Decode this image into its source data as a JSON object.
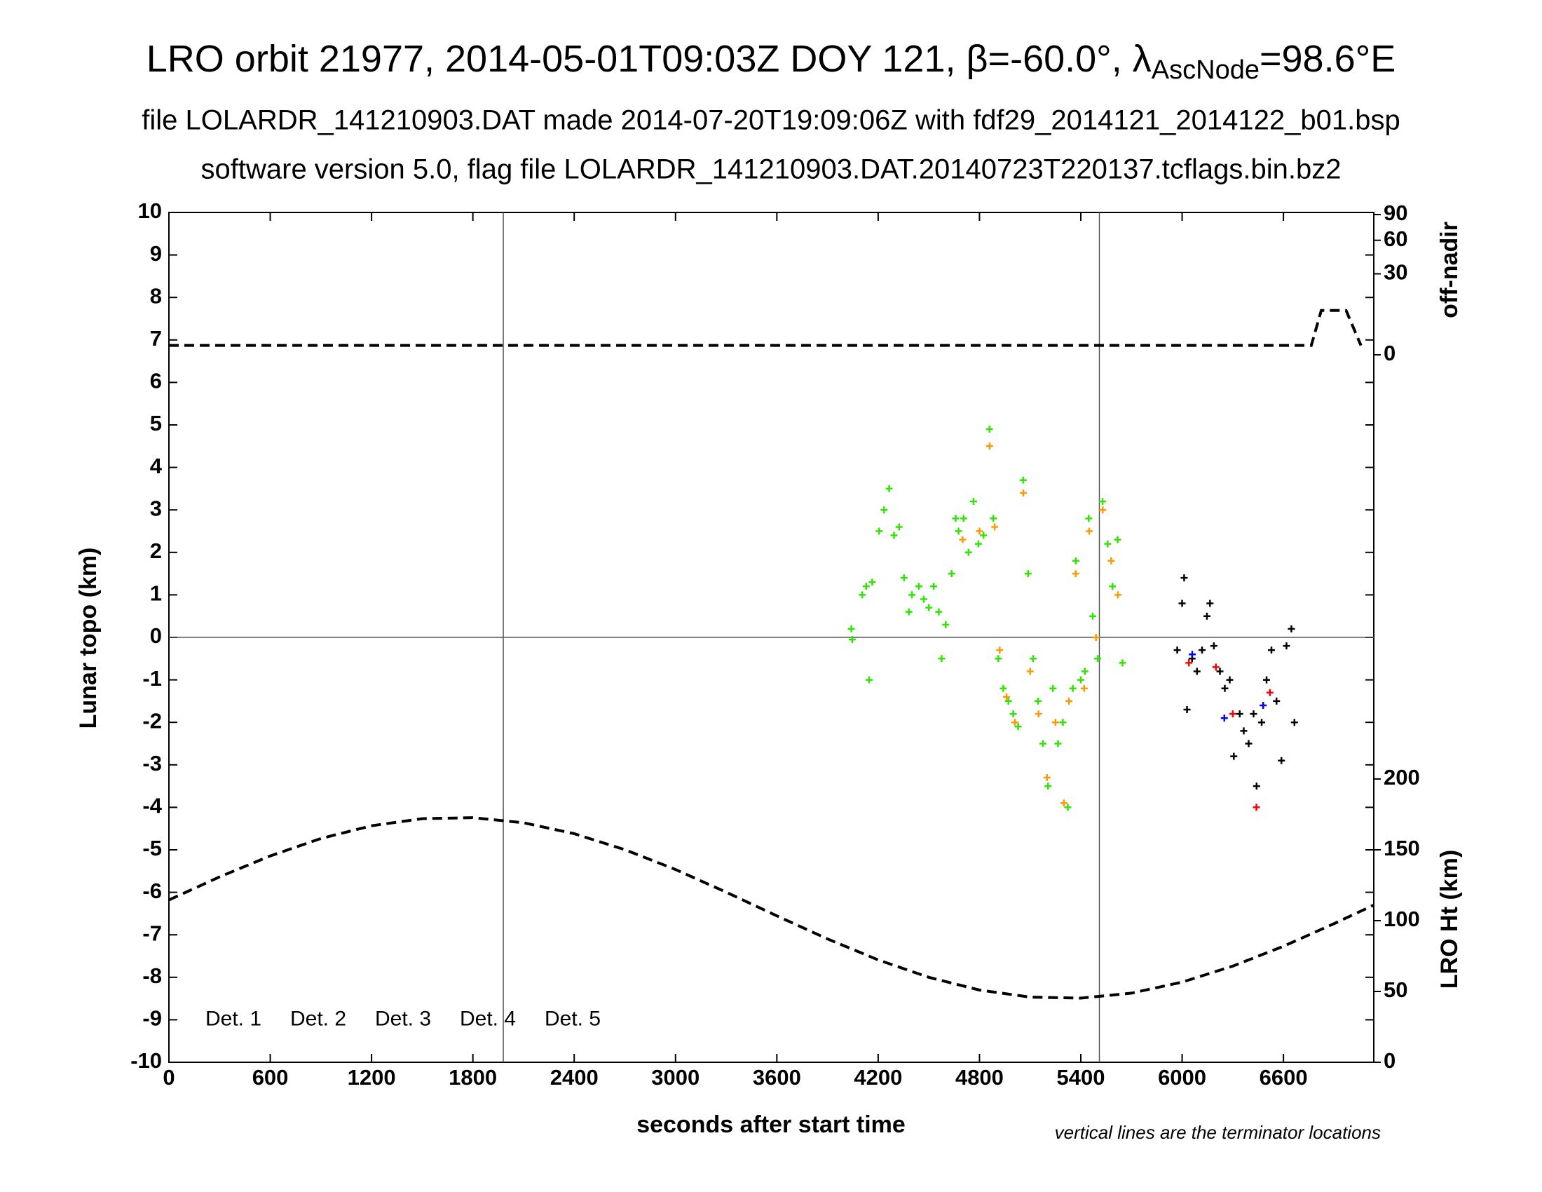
{
  "chart_data": {
    "type": "scatter",
    "title": {
      "main": "LRO orbit 21977, 2014-05-01T09:03Z DOY 121, β=-60.0°, λ",
      "subscript": "AscNode",
      "end": "=98.6°E"
    },
    "subtitles": [
      "file LOLARDR_141210903.DAT made 2014-07-20T19:09:06Z with fdf29_2014121_2014122_b01.bsp",
      "software version 5.0, flag file LOLARDR_141210903.DAT.20140723T220137.tcflags.bin.bz2"
    ],
    "xlabel": "seconds after start time",
    "ylabel": "Lunar topo (km)",
    "y2label": "off-nadir",
    "y3label": "LRO Ht (km)",
    "note": "vertical lines are the terminator locations",
    "xlim": [
      0,
      7135
    ],
    "xticks": [
      0,
      600,
      1200,
      1800,
      2400,
      3000,
      3600,
      4200,
      4800,
      5400,
      6000,
      6600
    ],
    "ylim": [
      -10,
      10
    ],
    "yticks": [
      -10,
      -9,
      -8,
      -7,
      -6,
      -5,
      -4,
      -3,
      -2,
      -1,
      0,
      1,
      2,
      3,
      4,
      5,
      6,
      7,
      8,
      9,
      10
    ],
    "y2lim": [
      0,
      90
    ],
    "y2ticks": [
      0,
      30,
      60,
      90
    ],
    "y2scale": "sqrt",
    "y3lim": [
      0,
      200
    ],
    "y3ticks": [
      0,
      50,
      100,
      150,
      200
    ],
    "vlines": [
      1980,
      5510
    ],
    "hlines": [
      0
    ],
    "legend": "lower left",
    "series": [
      {
        "name": "Det. 1",
        "color": "#000000",
        "x": [
          5971,
          6000,
          6012,
          6029,
          6059,
          6088,
          6118,
          6147,
          6165,
          6188,
          6224,
          6253,
          6282,
          6306,
          6341,
          6365,
          6394,
          6423,
          6441,
          6471,
          6500,
          6529,
          6559,
          6588,
          6618,
          6647,
          6665
        ],
        "values": [
          -0.3,
          0.8,
          1.4,
          -1.7,
          -0.5,
          -0.8,
          -0.3,
          0.5,
          0.8,
          -0.2,
          -0.8,
          -1.2,
          -1.0,
          -2.8,
          -1.8,
          -2.2,
          -2.5,
          -1.8,
          -3.5,
          -2.0,
          -1.0,
          -0.3,
          -1.5,
          -2.9,
          -0.2,
          0.2,
          -2.0
        ]
      },
      {
        "name": "Det. 2",
        "color": "#0000ff",
        "x": [
          6060,
          6250,
          6480
        ],
        "values": [
          -0.4,
          -1.9,
          -1.6
        ]
      },
      {
        "name": "Det. 3",
        "color": "#2ee600",
        "x": [
          4041,
          4047,
          4147,
          4106,
          4129,
          4165,
          4206,
          4235,
          4265,
          4294,
          4324,
          4353,
          4382,
          4400,
          4441,
          4470,
          4500,
          4529,
          4559,
          4576,
          4600,
          4635,
          4659,
          4676,
          4706,
          4735,
          4765,
          4794,
          4824,
          4859,
          4882,
          4912,
          4941,
          4971,
          5000,
          5029,
          5059,
          5088,
          5118,
          5147,
          5176,
          5206,
          5235,
          5265,
          5294,
          5323,
          5353,
          5371,
          5400,
          5424,
          5447,
          5471,
          5500,
          5529,
          5559,
          5588,
          5618,
          5647
        ],
        "values": [
          0.2,
          -0.05,
          -1.0,
          1.0,
          1.2,
          1.3,
          2.5,
          3.0,
          3.5,
          2.4,
          2.6,
          1.4,
          0.6,
          1.0,
          1.2,
          0.9,
          0.7,
          1.2,
          0.6,
          -0.5,
          0.3,
          1.5,
          2.8,
          2.5,
          2.8,
          2.0,
          3.2,
          2.2,
          2.4,
          4.9,
          2.8,
          -0.5,
          -1.2,
          -1.5,
          -1.8,
          -2.1,
          3.7,
          1.5,
          -0.5,
          -1.5,
          -2.5,
          -3.5,
          -1.2,
          -2.5,
          -2.0,
          -4.0,
          -1.2,
          1.8,
          -1.0,
          -0.8,
          2.8,
          0.5,
          -0.5,
          3.2,
          2.2,
          1.2,
          2.3,
          -0.6
        ]
      },
      {
        "name": "Det. 4",
        "color": "#ff9900",
        "x": [
          4700,
          4800,
          4860,
          4890,
          4920,
          4960,
          5010,
          5060,
          5100,
          5150,
          5200,
          5250,
          5300,
          5330,
          5370,
          5420,
          5450,
          5490,
          5530,
          5580,
          5620
        ],
        "values": [
          2.3,
          2.5,
          4.5,
          2.6,
          -0.3,
          -1.4,
          -2.0,
          3.4,
          -0.8,
          -1.8,
          -3.3,
          -2.0,
          -3.9,
          -1.5,
          1.5,
          -1.2,
          2.5,
          0.0,
          3.0,
          1.8,
          1.0
        ]
      },
      {
        "name": "Det. 5",
        "color": "#ff0000",
        "x": [
          6040,
          6200,
          6300,
          6440,
          6520
        ],
        "values": [
          -0.6,
          -0.7,
          -1.8,
          -4.0,
          -1.3
        ]
      }
    ],
    "off_nadir": {
      "axis": "y2",
      "x": [
        0,
        6765,
        6824,
        6971,
        7059
      ],
      "values": [
        0.4,
        0.4,
        9,
        9,
        0.4
      ]
    },
    "lro_height": {
      "axis": "y3",
      "x": [
        0,
        300,
        600,
        900,
        1200,
        1500,
        1800,
        2100,
        2400,
        2700,
        3000,
        3300,
        3600,
        3900,
        4200,
        4500,
        4800,
        5100,
        5400,
        5700,
        6000,
        6300,
        6600,
        6900,
        7135
      ],
      "values": [
        114.6,
        130.9,
        145.7,
        158.0,
        167.0,
        172.0,
        172.7,
        169.1,
        161.4,
        150.1,
        136.1,
        120.1,
        103.4,
        87.1,
        72.3,
        60.0,
        51.0,
        46.0,
        45.3,
        48.8,
        56.6,
        67.9,
        81.9,
        97.9,
        111.0
      ]
    }
  }
}
